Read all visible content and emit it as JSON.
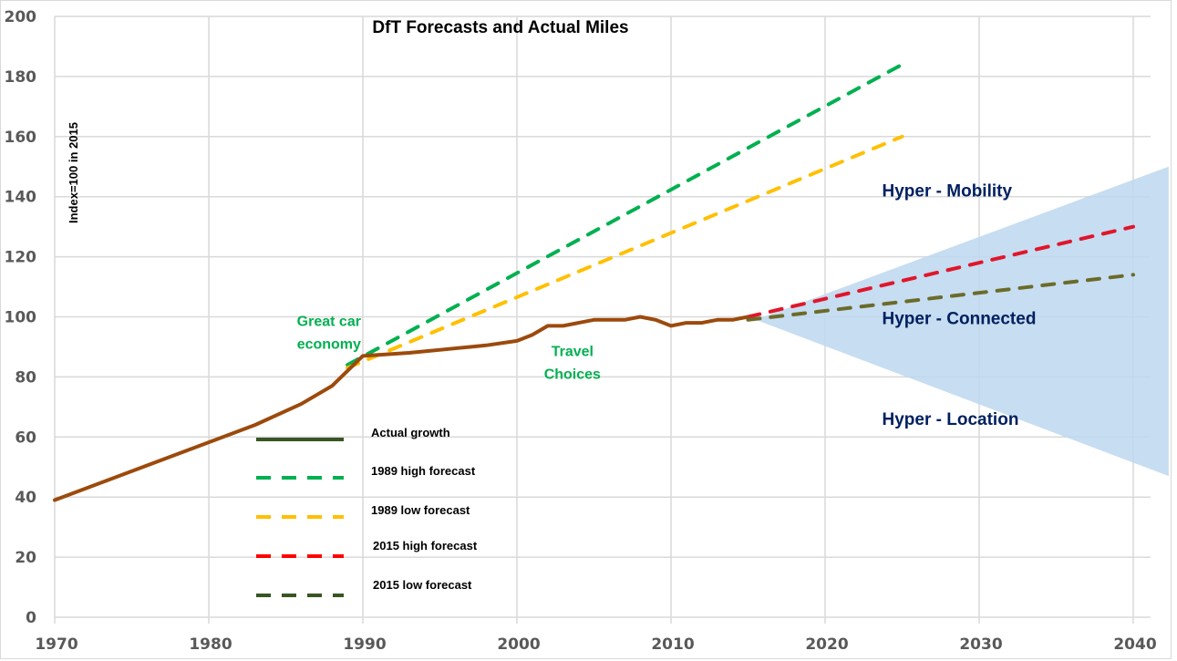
{
  "chart_data": {
    "type": "line",
    "title": "DfT Forecasts and Actual Miles",
    "ylabel": "Index=100 in 2015",
    "xlabel": "",
    "xlim": [
      1970,
      2040
    ],
    "ylim": [
      0,
      200
    ],
    "xticks": [
      1970,
      1980,
      1990,
      2000,
      2010,
      2020,
      2030,
      2040
    ],
    "yticks": [
      0,
      20,
      40,
      60,
      80,
      100,
      120,
      140,
      160,
      180,
      200
    ],
    "grid": true,
    "legend_position": "bottom-left (inside plot)",
    "series": [
      {
        "name": "Actual growth",
        "legend_label": "Actual growth",
        "legend_color": "#375623",
        "color": "#9c4a0c",
        "style": "solid",
        "x": [
          1970,
          1983,
          1986,
          1988,
          1990,
          1993,
          1998,
          2000,
          2001,
          2002,
          2003,
          2005,
          2007,
          2008,
          2009,
          2010,
          2011,
          2012,
          2013,
          2014,
          2015
        ],
        "y": [
          39,
          64,
          71,
          77,
          87,
          88,
          90.5,
          92,
          94,
          97,
          97,
          99,
          99,
          100,
          99,
          97,
          98,
          98,
          99,
          99,
          100
        ]
      },
      {
        "name": "1989 high forecast",
        "legend_label": "1989 high forecast",
        "color": "#00b050",
        "style": "dashed",
        "x": [
          1989,
          2025
        ],
        "y": [
          84,
          184
        ]
      },
      {
        "name": "1989 low forecast",
        "legend_label": "1989 low forecast",
        "color": "#ffc000",
        "style": "dashed",
        "x": [
          1989,
          2025
        ],
        "y": [
          83,
          160
        ]
      },
      {
        "name": "2015 high forecast",
        "legend_label": "2015 high forecast",
        "legend_color": "#ff0000",
        "color": "#e0162b",
        "style": "dashed",
        "x": [
          2015,
          2040
        ],
        "y": [
          100,
          130
        ]
      },
      {
        "name": "2015 low forecast",
        "legend_label": "2015 low forecast",
        "legend_color": "#375623",
        "color": "#6b6b2a",
        "style": "dashed",
        "x": [
          2015,
          2040
        ],
        "y": [
          99,
          114
        ]
      }
    ],
    "shaded_region": {
      "name": "Uncertainty cone",
      "color": "#bdd7ee",
      "points": [
        [
          2015.5,
          99
        ],
        [
          2042.3,
          150
        ],
        [
          2042.3,
          47
        ]
      ]
    },
    "annotations": [
      {
        "id": "great-car-economy",
        "lines": [
          "Great car",
          "economy"
        ],
        "x": 1987.8,
        "y": 97,
        "color": "#00b050"
      },
      {
        "id": "travel-choices",
        "lines": [
          "Travel",
          "Choices"
        ],
        "x": 2003.6,
        "y": 87,
        "color": "#00b050"
      },
      {
        "id": "hyper-mobility",
        "lines": [
          "Hyper - Mobility"
        ],
        "x": 2023.7,
        "y": 140,
        "color": "#002060"
      },
      {
        "id": "hyper-connected",
        "lines": [
          "Hyper - Connected"
        ],
        "x": 2023.7,
        "y": 97.5,
        "color": "#002060"
      },
      {
        "id": "hyper-location",
        "lines": [
          "Hyper - Location"
        ],
        "x": 2023.7,
        "y": 64,
        "color": "#002060"
      }
    ]
  }
}
